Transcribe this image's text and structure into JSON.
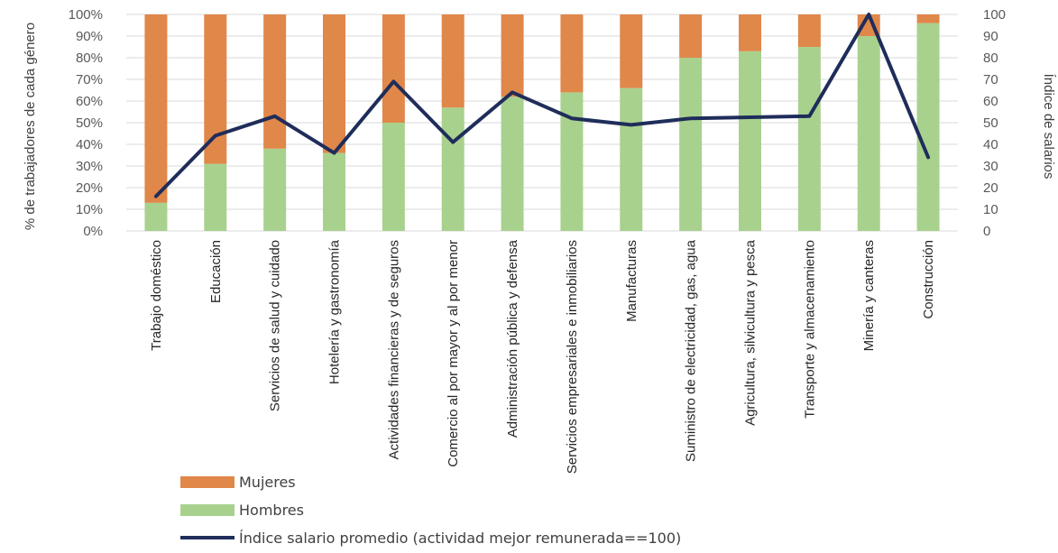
{
  "chart_data": {
    "type": "bar",
    "stacked": true,
    "percent_stacked": true,
    "categories": [
      "Trabajo doméstico",
      "Educación",
      "Servicios de salud y cuidado",
      "Hotelería y gastronomía",
      "Actividades financieras y de seguros",
      "Comercio al por mayor y al por menor",
      "Administración pública y defensa",
      "Servicios empresariales e inmobiliarios",
      "Manufacturas",
      "Suministro de electricidad, gas, agua",
      "Agricultura, silvicultura y pesca",
      "Transporte y almacenamiento",
      "Minería y canteras",
      "Construcción"
    ],
    "series": [
      {
        "name": "Hombres",
        "type": "bar",
        "axis": "left",
        "color": "#a9d18e",
        "values": [
          13,
          31,
          38,
          36,
          50,
          57,
          62,
          64,
          66,
          80,
          83,
          85,
          90,
          96
        ]
      },
      {
        "name": "Mujeres",
        "type": "bar",
        "axis": "left",
        "color": "#e0874a",
        "values": [
          87,
          69,
          62,
          64,
          50,
          43,
          38,
          36,
          34,
          20,
          17,
          15,
          10,
          4
        ]
      },
      {
        "name": "Índice salario promedio (actividad mejor remunerada==100)",
        "type": "line",
        "axis": "right",
        "color": "#1f2d5a",
        "values": [
          16,
          44,
          53,
          36,
          69,
          41,
          64,
          52,
          49,
          52,
          52.5,
          53,
          100,
          34
        ]
      }
    ],
    "ylabel": "% de trabajadores de cada género",
    "y2label": "Índice de salarios",
    "ylim": [
      0,
      100
    ],
    "y2lim": [
      0,
      100
    ],
    "yticks": [
      "0%",
      "10%",
      "20%",
      "30%",
      "40%",
      "50%",
      "60%",
      "70%",
      "80%",
      "90%",
      "100%"
    ],
    "y2ticks": [
      "0",
      "10",
      "20",
      "30",
      "40",
      "50",
      "60",
      "70",
      "80",
      "90",
      "100"
    ],
    "grid": true,
    "legend_position": "bottom-left"
  },
  "legend": {
    "mujeres": "Mujeres",
    "hombres": "Hombres",
    "indice": "Índice salario promedio (actividad mejor remunerada==100)"
  }
}
